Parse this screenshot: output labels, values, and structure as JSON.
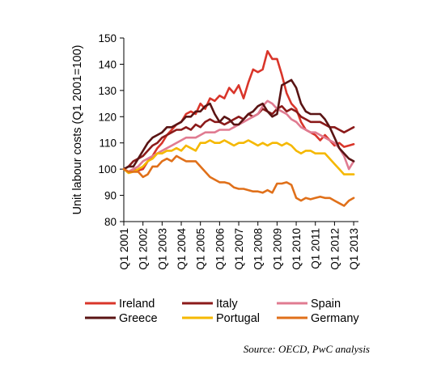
{
  "chart_data": {
    "type": "line",
    "xlabel": "",
    "ylabel": "Unit labour costs (Q1 2001=100)",
    "ylim": [
      80,
      150
    ],
    "yticks": [
      80,
      90,
      100,
      110,
      120,
      130,
      140,
      150
    ],
    "xlim": [
      2001.0,
      2013.25
    ],
    "xticks": [
      {
        "value": 2001,
        "label": "Q1 2001"
      },
      {
        "value": 2002,
        "label": "Q1 2002"
      },
      {
        "value": 2003,
        "label": "Q1 2003"
      },
      {
        "value": 2004,
        "label": "Q1 2004"
      },
      {
        "value": 2005,
        "label": "Q1 2005"
      },
      {
        "value": 2006,
        "label": "Q1 2006"
      },
      {
        "value": 2007,
        "label": "Q1 2007"
      },
      {
        "value": 2008,
        "label": "Q1 2008"
      },
      {
        "value": 2009,
        "label": "Q1 2009"
      },
      {
        "value": 2010,
        "label": "Q1 2010"
      },
      {
        "value": 2011,
        "label": "Q1 2011"
      },
      {
        "value": 2012,
        "label": "Q1 2012"
      },
      {
        "value": 2013,
        "label": "Q1 2013"
      }
    ],
    "grid": false,
    "legend": "bottom",
    "series": [
      {
        "name": "Ireland",
        "color": "#d9352a",
        "points": [
          [
            2001,
            100
          ],
          [
            2001.25,
            99
          ],
          [
            2001.5,
            100
          ],
          [
            2001.75,
            99.5
          ],
          [
            2002,
            100
          ],
          [
            2002.25,
            103
          ],
          [
            2002.5,
            105
          ],
          [
            2002.75,
            108
          ],
          [
            2003,
            110
          ],
          [
            2003.25,
            113
          ],
          [
            2003.5,
            115
          ],
          [
            2003.75,
            117
          ],
          [
            2004,
            118
          ],
          [
            2004.25,
            121
          ],
          [
            2004.5,
            122
          ],
          [
            2004.75,
            121
          ],
          [
            2005,
            125
          ],
          [
            2005.25,
            123
          ],
          [
            2005.5,
            127
          ],
          [
            2005.75,
            126
          ],
          [
            2006,
            128
          ],
          [
            2006.25,
            127
          ],
          [
            2006.5,
            131
          ],
          [
            2006.75,
            129
          ],
          [
            2007,
            132
          ],
          [
            2007.25,
            127
          ],
          [
            2007.5,
            133
          ],
          [
            2007.75,
            138
          ],
          [
            2008,
            137
          ],
          [
            2008.25,
            138
          ],
          [
            2008.5,
            145
          ],
          [
            2008.75,
            142
          ],
          [
            2009,
            142
          ],
          [
            2009.25,
            136
          ],
          [
            2009.5,
            129
          ],
          [
            2009.75,
            125
          ],
          [
            2010,
            123
          ],
          [
            2010.25,
            118
          ],
          [
            2010.5,
            115
          ],
          [
            2010.75,
            114
          ],
          [
            2011,
            113
          ],
          [
            2011.25,
            111
          ],
          [
            2011.5,
            113
          ],
          [
            2011.75,
            111
          ],
          [
            2012,
            109
          ],
          [
            2012.25,
            110
          ],
          [
            2012.5,
            108.5
          ],
          [
            2012.75,
            109
          ],
          [
            2013,
            109.5
          ]
        ]
      },
      {
        "name": "Italy",
        "color": "#8b1a1a",
        "points": [
          [
            2001,
            100
          ],
          [
            2001.25,
            101
          ],
          [
            2001.5,
            103
          ],
          [
            2001.75,
            104
          ],
          [
            2002,
            105
          ],
          [
            2002.25,
            107
          ],
          [
            2002.5,
            109
          ],
          [
            2002.75,
            110
          ],
          [
            2003,
            112
          ],
          [
            2003.25,
            113
          ],
          [
            2003.5,
            114
          ],
          [
            2003.75,
            115
          ],
          [
            2004,
            115
          ],
          [
            2004.25,
            116
          ],
          [
            2004.5,
            115
          ],
          [
            2004.75,
            117
          ],
          [
            2005,
            116
          ],
          [
            2005.25,
            118
          ],
          [
            2005.5,
            119
          ],
          [
            2005.75,
            118
          ],
          [
            2006,
            118
          ],
          [
            2006.25,
            117
          ],
          [
            2006.5,
            118
          ],
          [
            2006.75,
            119
          ],
          [
            2007,
            120
          ],
          [
            2007.25,
            119
          ],
          [
            2007.5,
            121
          ],
          [
            2007.75,
            120
          ],
          [
            2008,
            121
          ],
          [
            2008.25,
            123
          ],
          [
            2008.5,
            122
          ],
          [
            2008.75,
            121
          ],
          [
            2009,
            123
          ],
          [
            2009.25,
            124
          ],
          [
            2009.5,
            122
          ],
          [
            2009.75,
            123
          ],
          [
            2010,
            122
          ],
          [
            2010.25,
            120
          ],
          [
            2010.5,
            119
          ],
          [
            2010.75,
            118
          ],
          [
            2011,
            118
          ],
          [
            2011.25,
            118
          ],
          [
            2011.5,
            117
          ],
          [
            2011.75,
            116
          ],
          [
            2012,
            116
          ],
          [
            2012.25,
            115
          ],
          [
            2012.5,
            114
          ],
          [
            2012.75,
            115
          ],
          [
            2013,
            116
          ]
        ]
      },
      {
        "name": "Spain",
        "color": "#e07b91",
        "points": [
          [
            2001,
            100
          ],
          [
            2001.25,
            99
          ],
          [
            2001.5,
            100
          ],
          [
            2001.75,
            101
          ],
          [
            2002,
            103
          ],
          [
            2002.25,
            104
          ],
          [
            2002.5,
            105
          ],
          [
            2002.75,
            106
          ],
          [
            2003,
            107
          ],
          [
            2003.25,
            108
          ],
          [
            2003.5,
            109
          ],
          [
            2003.75,
            110
          ],
          [
            2004,
            111
          ],
          [
            2004.25,
            112
          ],
          [
            2004.5,
            112
          ],
          [
            2004.75,
            112
          ],
          [
            2005,
            113
          ],
          [
            2005.25,
            114
          ],
          [
            2005.5,
            114
          ],
          [
            2005.75,
            114
          ],
          [
            2006,
            115
          ],
          [
            2006.25,
            115
          ],
          [
            2006.5,
            115
          ],
          [
            2006.75,
            116
          ],
          [
            2007,
            117
          ],
          [
            2007.25,
            118
          ],
          [
            2007.5,
            119
          ],
          [
            2007.75,
            120
          ],
          [
            2008,
            121
          ],
          [
            2008.25,
            124
          ],
          [
            2008.5,
            126
          ],
          [
            2008.75,
            125
          ],
          [
            2009,
            123
          ],
          [
            2009.25,
            122
          ],
          [
            2009.5,
            121
          ],
          [
            2009.75,
            119
          ],
          [
            2010,
            118
          ],
          [
            2010.25,
            116
          ],
          [
            2010.5,
            115
          ],
          [
            2010.75,
            114
          ],
          [
            2011,
            114
          ],
          [
            2011.25,
            113
          ],
          [
            2011.5,
            112
          ],
          [
            2011.75,
            111
          ],
          [
            2012,
            110
          ],
          [
            2012.25,
            108
          ],
          [
            2012.5,
            105
          ],
          [
            2012.75,
            100
          ],
          [
            2013,
            103
          ]
        ]
      },
      {
        "name": "Greece",
        "color": "#5a1414",
        "points": [
          [
            2001,
            100
          ],
          [
            2001.25,
            101
          ],
          [
            2001.5,
            101
          ],
          [
            2001.75,
            104
          ],
          [
            2002,
            107
          ],
          [
            2002.25,
            110
          ],
          [
            2002.5,
            112
          ],
          [
            2002.75,
            113
          ],
          [
            2003,
            114
          ],
          [
            2003.25,
            116
          ],
          [
            2003.5,
            116
          ],
          [
            2003.75,
            117
          ],
          [
            2004,
            118
          ],
          [
            2004.25,
            120
          ],
          [
            2004.5,
            120
          ],
          [
            2004.75,
            122
          ],
          [
            2005,
            122
          ],
          [
            2005.25,
            124
          ],
          [
            2005.5,
            125
          ],
          [
            2005.75,
            121
          ],
          [
            2006,
            118
          ],
          [
            2006.25,
            120
          ],
          [
            2006.5,
            119
          ],
          [
            2006.75,
            117
          ],
          [
            2007,
            117
          ],
          [
            2007.25,
            119
          ],
          [
            2007.5,
            121
          ],
          [
            2007.75,
            122
          ],
          [
            2008,
            124
          ],
          [
            2008.25,
            125
          ],
          [
            2008.5,
            122
          ],
          [
            2008.75,
            120
          ],
          [
            2009,
            121
          ],
          [
            2009.25,
            132
          ],
          [
            2009.5,
            133
          ],
          [
            2009.75,
            134
          ],
          [
            2010,
            131
          ],
          [
            2010.25,
            125
          ],
          [
            2010.5,
            122
          ],
          [
            2010.75,
            121
          ],
          [
            2011,
            121
          ],
          [
            2011.25,
            121
          ],
          [
            2011.5,
            119
          ],
          [
            2011.75,
            116
          ],
          [
            2012,
            112
          ],
          [
            2012.25,
            108
          ],
          [
            2012.5,
            106
          ],
          [
            2012.75,
            104
          ],
          [
            2013,
            103
          ]
        ]
      },
      {
        "name": "Portugal",
        "color": "#f5b800",
        "points": [
          [
            2001,
            100
          ],
          [
            2001.25,
            98.5
          ],
          [
            2001.5,
            99
          ],
          [
            2001.75,
            100
          ],
          [
            2002,
            101
          ],
          [
            2002.25,
            103
          ],
          [
            2002.5,
            104
          ],
          [
            2002.75,
            106
          ],
          [
            2003,
            106
          ],
          [
            2003.25,
            107
          ],
          [
            2003.5,
            107
          ],
          [
            2003.75,
            108
          ],
          [
            2004,
            107
          ],
          [
            2004.25,
            109
          ],
          [
            2004.5,
            108
          ],
          [
            2004.75,
            107
          ],
          [
            2005,
            110
          ],
          [
            2005.25,
            110
          ],
          [
            2005.5,
            111
          ],
          [
            2005.75,
            110
          ],
          [
            2006,
            110
          ],
          [
            2006.25,
            111
          ],
          [
            2006.5,
            110
          ],
          [
            2006.75,
            109
          ],
          [
            2007,
            110
          ],
          [
            2007.25,
            110
          ],
          [
            2007.5,
            111
          ],
          [
            2007.75,
            110
          ],
          [
            2008,
            109
          ],
          [
            2008.25,
            110
          ],
          [
            2008.5,
            109
          ],
          [
            2008.75,
            110
          ],
          [
            2009,
            110
          ],
          [
            2009.25,
            109
          ],
          [
            2009.5,
            110
          ],
          [
            2009.75,
            109
          ],
          [
            2010,
            107
          ],
          [
            2010.25,
            106
          ],
          [
            2010.5,
            107
          ],
          [
            2010.75,
            107
          ],
          [
            2011,
            106
          ],
          [
            2011.25,
            106
          ],
          [
            2011.5,
            106
          ],
          [
            2011.75,
            104
          ],
          [
            2012,
            102
          ],
          [
            2012.25,
            100
          ],
          [
            2012.5,
            98
          ],
          [
            2012.75,
            98
          ],
          [
            2013,
            98
          ]
        ]
      },
      {
        "name": "Germany",
        "color": "#e0701a",
        "points": [
          [
            2001,
            100
          ],
          [
            2001.25,
            99
          ],
          [
            2001.5,
            99
          ],
          [
            2001.75,
            99
          ],
          [
            2002,
            97
          ],
          [
            2002.25,
            98
          ],
          [
            2002.5,
            101
          ],
          [
            2002.75,
            101
          ],
          [
            2003,
            103
          ],
          [
            2003.25,
            104
          ],
          [
            2003.5,
            103
          ],
          [
            2003.75,
            105
          ],
          [
            2004,
            104
          ],
          [
            2004.25,
            103
          ],
          [
            2004.5,
            103
          ],
          [
            2004.75,
            103
          ],
          [
            2005,
            101
          ],
          [
            2005.25,
            99
          ],
          [
            2005.5,
            97
          ],
          [
            2005.75,
            96
          ],
          [
            2006,
            95
          ],
          [
            2006.25,
            95
          ],
          [
            2006.5,
            94.5
          ],
          [
            2006.75,
            93
          ],
          [
            2007,
            92.5
          ],
          [
            2007.25,
            92.5
          ],
          [
            2007.5,
            92
          ],
          [
            2007.75,
            91.5
          ],
          [
            2008,
            91.5
          ],
          [
            2008.25,
            91
          ],
          [
            2008.5,
            92
          ],
          [
            2008.75,
            91
          ],
          [
            2009,
            94.5
          ],
          [
            2009.25,
            94.5
          ],
          [
            2009.5,
            95
          ],
          [
            2009.75,
            94
          ],
          [
            2010,
            89
          ],
          [
            2010.25,
            88
          ],
          [
            2010.5,
            89
          ],
          [
            2010.75,
            88.5
          ],
          [
            2011,
            89
          ],
          [
            2011.25,
            89.5
          ],
          [
            2011.5,
            89
          ],
          [
            2011.75,
            89
          ],
          [
            2012,
            88
          ],
          [
            2012.25,
            87
          ],
          [
            2012.5,
            86
          ],
          [
            2012.75,
            88
          ],
          [
            2013,
            89
          ]
        ]
      }
    ]
  },
  "source_note": "Source: OECD, PwC analysis"
}
